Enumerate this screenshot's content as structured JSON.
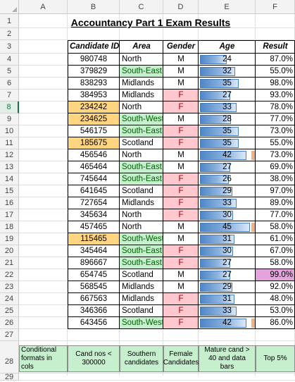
{
  "columns": [
    "A",
    "B",
    "C",
    "D",
    "E",
    "F"
  ],
  "rows": [
    "1",
    "2",
    "3",
    "4",
    "5",
    "6",
    "7",
    "8",
    "9",
    "10",
    "11",
    "12",
    "13",
    "14",
    "15",
    "16",
    "17",
    "18",
    "19",
    "20",
    "21",
    "22",
    "23",
    "24",
    "25",
    "26",
    "27",
    "28",
    "29"
  ],
  "selected_row": "8",
  "title": "Accountancy Part 1 Exam Results",
  "headers": {
    "id": "Candidate ID",
    "area": "Area",
    "gender": "Gender",
    "age": "Age",
    "result": "Result"
  },
  "colors": {
    "id_highlight": "#ffd580",
    "south": "#c6efce",
    "south_text": "#006100",
    "female": "#ffc7ce",
    "top5": "#e4a3dc",
    "bar": "#4f86c6",
    "mature_marker": "#f4b183"
  },
  "age_scale": {
    "min": 0,
    "max": 45
  },
  "records": [
    {
      "id": "980748",
      "area": "North",
      "gender": "M",
      "age": "24",
      "result": "87.0%",
      "id_hl": false,
      "south": false,
      "female": false,
      "mature": false,
      "top5": false
    },
    {
      "id": "379829",
      "area": "South-East",
      "gender": "M",
      "age": "32",
      "result": "55.0%",
      "id_hl": false,
      "south": true,
      "female": false,
      "mature": false,
      "top5": false
    },
    {
      "id": "838293",
      "area": "Midlands",
      "gender": "M",
      "age": "35",
      "result": "98.0%",
      "id_hl": false,
      "south": false,
      "female": false,
      "mature": false,
      "top5": false
    },
    {
      "id": "384953",
      "area": "Midlands",
      "gender": "F",
      "age": "27",
      "result": "93.0%",
      "id_hl": false,
      "south": false,
      "female": true,
      "mature": false,
      "top5": false
    },
    {
      "id": "234242",
      "area": "North",
      "gender": "F",
      "age": "33",
      "result": "78.0%",
      "id_hl": true,
      "south": false,
      "female": true,
      "mature": false,
      "top5": false
    },
    {
      "id": "234625",
      "area": "South-West",
      "gender": "M",
      "age": "28",
      "result": "77.0%",
      "id_hl": true,
      "south": true,
      "female": false,
      "mature": false,
      "top5": false
    },
    {
      "id": "546175",
      "area": "South-East",
      "gender": "F",
      "age": "35",
      "result": "73.0%",
      "id_hl": false,
      "south": true,
      "female": true,
      "mature": false,
      "top5": false
    },
    {
      "id": "185675",
      "area": "Scotland",
      "gender": "F",
      "age": "35",
      "result": "55.0%",
      "id_hl": true,
      "south": false,
      "female": true,
      "mature": false,
      "top5": false
    },
    {
      "id": "456546",
      "area": "North",
      "gender": "M",
      "age": "42",
      "result": "73.0%",
      "id_hl": false,
      "south": false,
      "female": false,
      "mature": true,
      "top5": false
    },
    {
      "id": "465464",
      "area": "South-East",
      "gender": "M",
      "age": "27",
      "result": "69.0%",
      "id_hl": false,
      "south": true,
      "female": false,
      "mature": false,
      "top5": false
    },
    {
      "id": "745644",
      "area": "South-East",
      "gender": "F",
      "age": "26",
      "result": "38.0%",
      "id_hl": false,
      "south": true,
      "female": true,
      "mature": false,
      "top5": false
    },
    {
      "id": "641645",
      "area": "Scotland",
      "gender": "F",
      "age": "29",
      "result": "97.0%",
      "id_hl": false,
      "south": false,
      "female": true,
      "mature": false,
      "top5": false
    },
    {
      "id": "727654",
      "area": "Midlands",
      "gender": "F",
      "age": "33",
      "result": "89.0%",
      "id_hl": false,
      "south": false,
      "female": true,
      "mature": false,
      "top5": false
    },
    {
      "id": "345634",
      "area": "North",
      "gender": "F",
      "age": "30",
      "result": "77.0%",
      "id_hl": false,
      "south": false,
      "female": true,
      "mature": false,
      "top5": false
    },
    {
      "id": "457465",
      "area": "North",
      "gender": "M",
      "age": "45",
      "result": "58.0%",
      "id_hl": false,
      "south": false,
      "female": false,
      "mature": true,
      "top5": false
    },
    {
      "id": "115465",
      "area": "South-West",
      "gender": "M",
      "age": "31",
      "result": "61.0%",
      "id_hl": true,
      "south": true,
      "female": false,
      "mature": false,
      "top5": false
    },
    {
      "id": "345464",
      "area": "South-East",
      "gender": "F",
      "age": "30",
      "result": "67.0%",
      "id_hl": false,
      "south": true,
      "female": true,
      "mature": false,
      "top5": false
    },
    {
      "id": "896667",
      "area": "South-East",
      "gender": "F",
      "age": "27",
      "result": "58.0%",
      "id_hl": false,
      "south": true,
      "female": true,
      "mature": false,
      "top5": false
    },
    {
      "id": "654745",
      "area": "Scotland",
      "gender": "M",
      "age": "27",
      "result": "99.0%",
      "id_hl": false,
      "south": false,
      "female": false,
      "mature": false,
      "top5": true
    },
    {
      "id": "568545",
      "area": "Midlands",
      "gender": "M",
      "age": "29",
      "result": "92.0%",
      "id_hl": false,
      "south": false,
      "female": false,
      "mature": false,
      "top5": false
    },
    {
      "id": "667563",
      "area": "Midlands",
      "gender": "F",
      "age": "31",
      "result": "48.0%",
      "id_hl": false,
      "south": false,
      "female": true,
      "mature": false,
      "top5": false
    },
    {
      "id": "346366",
      "area": "Scotland",
      "gender": "F",
      "age": "33",
      "result": "53.0%",
      "id_hl": false,
      "south": false,
      "female": true,
      "mature": false,
      "top5": false
    },
    {
      "id": "643456",
      "area": "South-West",
      "gender": "F",
      "age": "42",
      "result": "86.0%",
      "id_hl": false,
      "south": true,
      "female": true,
      "mature": true,
      "top5": false
    }
  ],
  "legend": [
    {
      "label": "Conditional formats in cols",
      "style": "plain"
    },
    {
      "label": "Cand nos < 300000",
      "style": "south"
    },
    {
      "label": "Southern candidates",
      "style": "plain"
    },
    {
      "label": "Female Candidates",
      "style": "plain"
    },
    {
      "label": "Mature cand > 40 and data bars",
      "style": "plain"
    },
    {
      "label": "Top 5%",
      "style": "plain"
    }
  ]
}
